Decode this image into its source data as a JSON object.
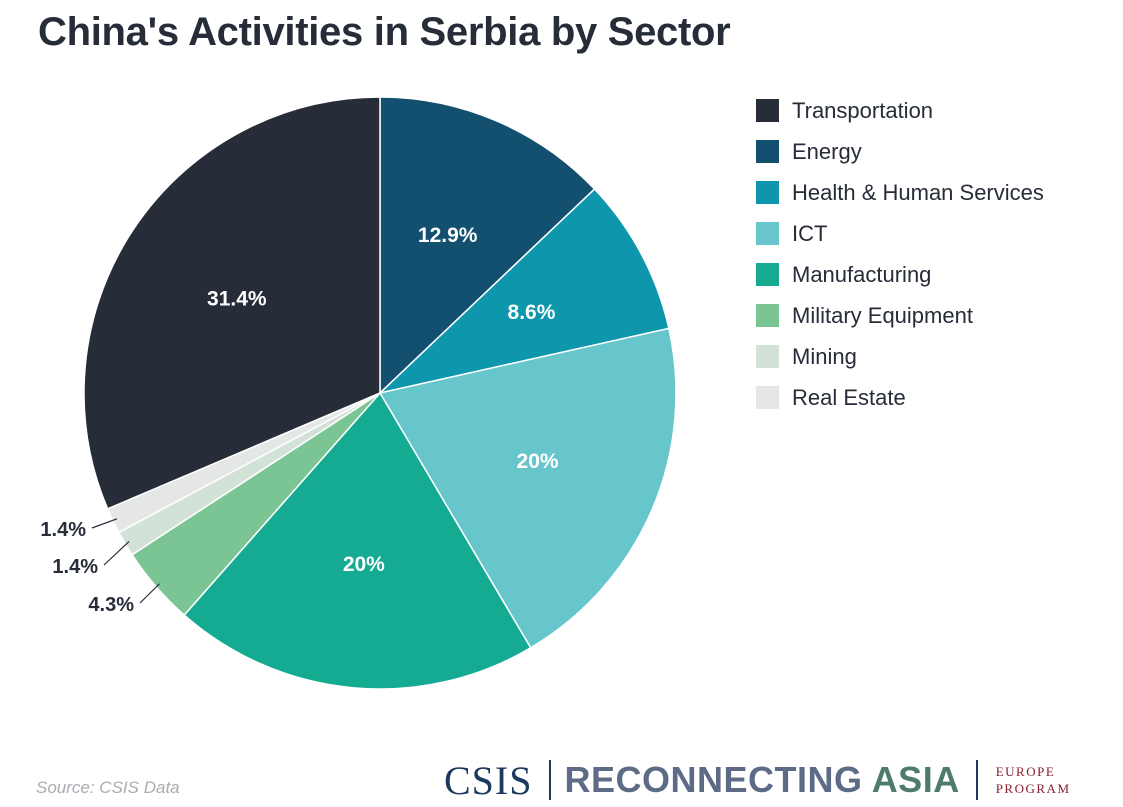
{
  "chart_data": {
    "type": "pie",
    "title": "China's Activities in Serbia by Sector",
    "categories": [
      "Transportation",
      "Energy",
      "Health & Human Services",
      "ICT",
      "Manufacturing",
      "Military Equipment",
      "Mining",
      "Real Estate"
    ],
    "values": [
      31.4,
      12.9,
      8.6,
      20,
      20,
      4.3,
      1.4,
      1.4
    ],
    "slice_labels": {
      "Transportation": "31.4%",
      "Energy": "12.9%",
      "Health & Human Services": "8.6%",
      "ICT": "20%",
      "Manufacturing": "20%",
      "Military Equipment": "4.3%",
      "Mining": "1.4%",
      "Real Estate": "1.4%"
    },
    "colors": [
      "#262c38",
      "#13506f",
      "#0e96ad",
      "#67c6cc",
      "#14ab92",
      "#7bc595",
      "#d3e2d6",
      "#e5e6e6"
    ],
    "order_clockwise_from_top": [
      "Energy",
      "Health & Human Services",
      "ICT",
      "Manufacturing",
      "Military Equipment",
      "Mining",
      "Real Estate",
      "Transportation"
    ],
    "outside_labels": [
      "Military Equipment",
      "Mining",
      "Real Estate"
    ],
    "legend_position": "right"
  },
  "source": "Source: CSIS Data",
  "footer": {
    "csis": "CSIS",
    "reconnecting_part": "RECONNECTING",
    "asia_part": "ASIA",
    "program_line1": "EUROPE",
    "program_line2": "PROGRAM"
  }
}
